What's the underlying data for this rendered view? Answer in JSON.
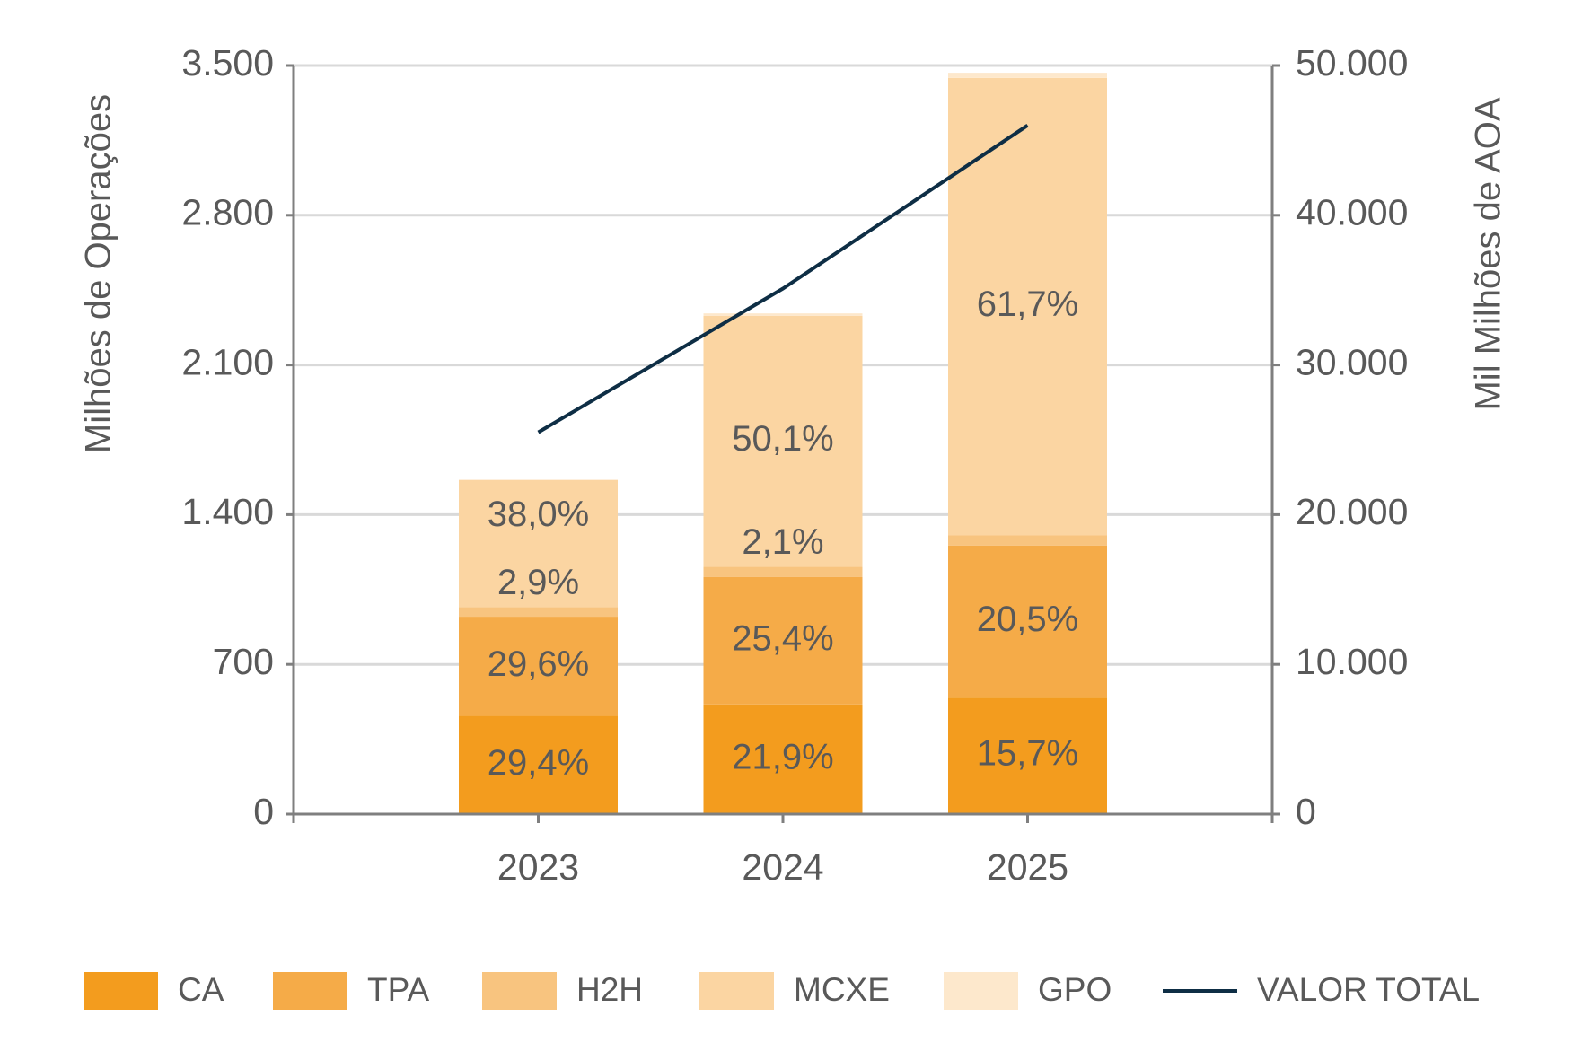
{
  "chart_data": {
    "type": "bar",
    "y_label": "Milhões de Operações",
    "y2_label": "Mil Milhões de AOA",
    "categories": [
      "2023",
      "2024",
      "2025"
    ],
    "stacked": true,
    "series": [
      {
        "name": "CA",
        "color": "#f39c1e",
        "values": [
          460,
          513,
          544
        ],
        "percent_labels": [
          "29,4%",
          "21,9%",
          "15,7%"
        ]
      },
      {
        "name": "TPA",
        "color": "#f5ab48",
        "values": [
          463,
          595,
          711
        ],
        "percent_labels": [
          "29,6%",
          "25,4%",
          "20,5%"
        ]
      },
      {
        "name": "H2H",
        "color": "#f8c47f",
        "values": [
          45,
          49,
          48
        ],
        "percent_labels": [
          "2,9%",
          "2,1%",
          null
        ]
      },
      {
        "name": "MCXE",
        "color": "#fbd5a2",
        "values": [
          594,
          1173,
          2139
        ],
        "percent_labels": [
          "38,0%",
          "50,1%",
          "61,7%"
        ]
      },
      {
        "name": "GPO",
        "color": "#fde8cc",
        "values": [
          2,
          11,
          24
        ]
      },
      {
        "name": "VALOR TOTAL",
        "type": "line",
        "axis": "y2",
        "color": "#0e2e45",
        "values": [
          25500,
          35100,
          46000
        ]
      }
    ],
    "ylim": [
      0,
      3500
    ],
    "yticks": [
      0,
      700,
      {
        "value": 1400,
        "label": "1.400"
      },
      {
        "value": 2100,
        "label": "2.100"
      },
      {
        "value": 2800,
        "label": "2.800"
      },
      {
        "value": 3500,
        "label": "3.500"
      }
    ],
    "y2lim": [
      0,
      50000
    ],
    "y2ticks": [
      0,
      {
        "value": 10000,
        "label": "10.000"
      },
      {
        "value": 20000,
        "label": "20.000"
      },
      {
        "value": 30000,
        "label": "30.000"
      },
      {
        "value": 40000,
        "label": "40.000"
      },
      {
        "value": 50000,
        "label": "50.000"
      }
    ],
    "grid": true,
    "legend": "bottom"
  }
}
